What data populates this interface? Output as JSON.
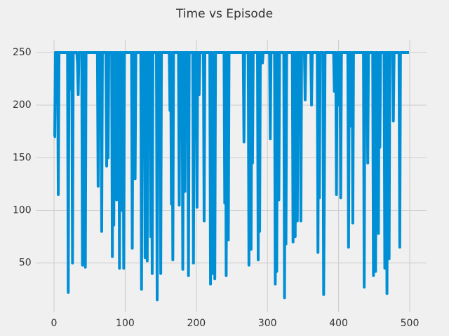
{
  "chart_data": {
    "type": "line",
    "title": "Time vs Episode",
    "color": "#008fd5",
    "grid": true,
    "xlim": [
      -24.95,
      523.95
    ],
    "xticks": [
      0,
      100,
      200,
      300,
      400,
      500
    ],
    "ylim": [
      3.25,
      261.75
    ],
    "yticks": [
      50,
      100,
      150,
      200,
      250
    ],
    "values": [
      170,
      170,
      250,
      250,
      250,
      250,
      115,
      250,
      250,
      250,
      250,
      250,
      250,
      250,
      250,
      250,
      250,
      250,
      250,
      250,
      22,
      250,
      215,
      250,
      250,
      250,
      50,
      250,
      250,
      250,
      250,
      250,
      250,
      240,
      210,
      250,
      250,
      250,
      250,
      250,
      48,
      250,
      250,
      250,
      46,
      250,
      250,
      250,
      250,
      250,
      250,
      250,
      250,
      250,
      250,
      250,
      250,
      250,
      250,
      250,
      250,
      250,
      123,
      250,
      250,
      250,
      250,
      80,
      250,
      250,
      250,
      250,
      250,
      250,
      142,
      250,
      150,
      250,
      250,
      250,
      250,
      250,
      56,
      250,
      86,
      250,
      250,
      250,
      110,
      250,
      250,
      250,
      45,
      250,
      250,
      100,
      250,
      250,
      45,
      250,
      250,
      250,
      250,
      250,
      250,
      250,
      250,
      250,
      250,
      250,
      64,
      250,
      250,
      250,
      130,
      250,
      250,
      250,
      250,
      250,
      250,
      250,
      250,
      25,
      250,
      250,
      250,
      250,
      55,
      250,
      250,
      52,
      250,
      250,
      250,
      250,
      75,
      250,
      40,
      250,
      250,
      250,
      250,
      250,
      250,
      15,
      250,
      250,
      250,
      250,
      40,
      250,
      250,
      250,
      250,
      250,
      250,
      250,
      250,
      250,
      250,
      250,
      250,
      195,
      250,
      106,
      250,
      53,
      250,
      250,
      250,
      250,
      250,
      250,
      250,
      250,
      105,
      250,
      250,
      250,
      250,
      44,
      250,
      250,
      118,
      250,
      250,
      250,
      250,
      38,
      250,
      250,
      250,
      250,
      250,
      250,
      50,
      250,
      250,
      250,
      250,
      103,
      250,
      250,
      210,
      250,
      250,
      250,
      250,
      250,
      250,
      90,
      250,
      250,
      250,
      250,
      250,
      250,
      250,
      250,
      30,
      250,
      250,
      40,
      215,
      250,
      35,
      250,
      250,
      250,
      250,
      250,
      250,
      250,
      250,
      250,
      250,
      250,
      250,
      250,
      107,
      250,
      38,
      250,
      250,
      72,
      250,
      250,
      250,
      250,
      250,
      250,
      250,
      250,
      250,
      250,
      250,
      250,
      250,
      250,
      250,
      250,
      250,
      250,
      250,
      250,
      250,
      165,
      250,
      250,
      250,
      250,
      250,
      250,
      48,
      250,
      250,
      63,
      250,
      145,
      250,
      250,
      250,
      250,
      250,
      250,
      250,
      53,
      250,
      80,
      250,
      250,
      250,
      240,
      250,
      250,
      250,
      250,
      250,
      250,
      250,
      250,
      250,
      250,
      168,
      250,
      250,
      250,
      250,
      250,
      250,
      30,
      250,
      42,
      250,
      250,
      110,
      250,
      250,
      250,
      250,
      250,
      250,
      250,
      17,
      250,
      68,
      250,
      250,
      250,
      250,
      250,
      250,
      250,
      250,
      250,
      70,
      250,
      250,
      75,
      250,
      250,
      90,
      250,
      250,
      250,
      250,
      90,
      250,
      250,
      250,
      250,
      250,
      205,
      250,
      250,
      250,
      250,
      250,
      250,
      250,
      250,
      200,
      250,
      250,
      250,
      250,
      250,
      250,
      250,
      250,
      60,
      250,
      112,
      250,
      250,
      250,
      250,
      250,
      20,
      125,
      250,
      250,
      250,
      250,
      250,
      250,
      250,
      250,
      250,
      250,
      250,
      250,
      250,
      213,
      250,
      250,
      115,
      250,
      250,
      200,
      250,
      250,
      112,
      250,
      250,
      250,
      250,
      250,
      250,
      250,
      250,
      250,
      250,
      65,
      250,
      250,
      250,
      180,
      250,
      88,
      250,
      250,
      250,
      250,
      250,
      250,
      250,
      250,
      250,
      250,
      250,
      250,
      250,
      250,
      250,
      27,
      250,
      250,
      250,
      250,
      145,
      250,
      250,
      250,
      250,
      250,
      250,
      250,
      38,
      250,
      250,
      42,
      250,
      250,
      250,
      78,
      250,
      160,
      250,
      250,
      250,
      250,
      250,
      250,
      45,
      250,
      250,
      21,
      250,
      250,
      54,
      250,
      250,
      250,
      250,
      250,
      185,
      250,
      250,
      250,
      250,
      250,
      250,
      250,
      250,
      65,
      250,
      250,
      250,
      250,
      250,
      250,
      250,
      250,
      250,
      250,
      250,
      250,
      250
    ]
  }
}
